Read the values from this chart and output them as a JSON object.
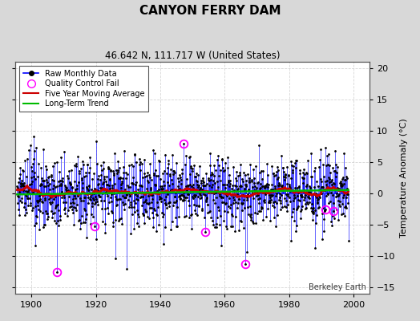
{
  "title": "CANYON FERRY DAM",
  "subtitle": "46.642 N, 111.717 W (United States)",
  "ylabel": "Temperature Anomaly (°C)",
  "xlim": [
    1895,
    2005
  ],
  "ylim": [
    -16,
    21
  ],
  "yticks": [
    -15,
    -10,
    -5,
    0,
    5,
    10,
    15,
    20
  ],
  "xticks": [
    1900,
    1920,
    1940,
    1960,
    1980,
    2000
  ],
  "figure_bg": "#d8d8d8",
  "plot_bg": "#ffffff",
  "grid_color": "#cccccc",
  "raw_line_color": "#0000ff",
  "raw_marker_color": "#000000",
  "moving_avg_color": "#cc0000",
  "trend_color": "#00bb00",
  "qc_fail_color": "#ff00ff",
  "watermark": "Berkeley Earth",
  "seed": 12345,
  "n_months": 1236,
  "start_year": 1895.5
}
